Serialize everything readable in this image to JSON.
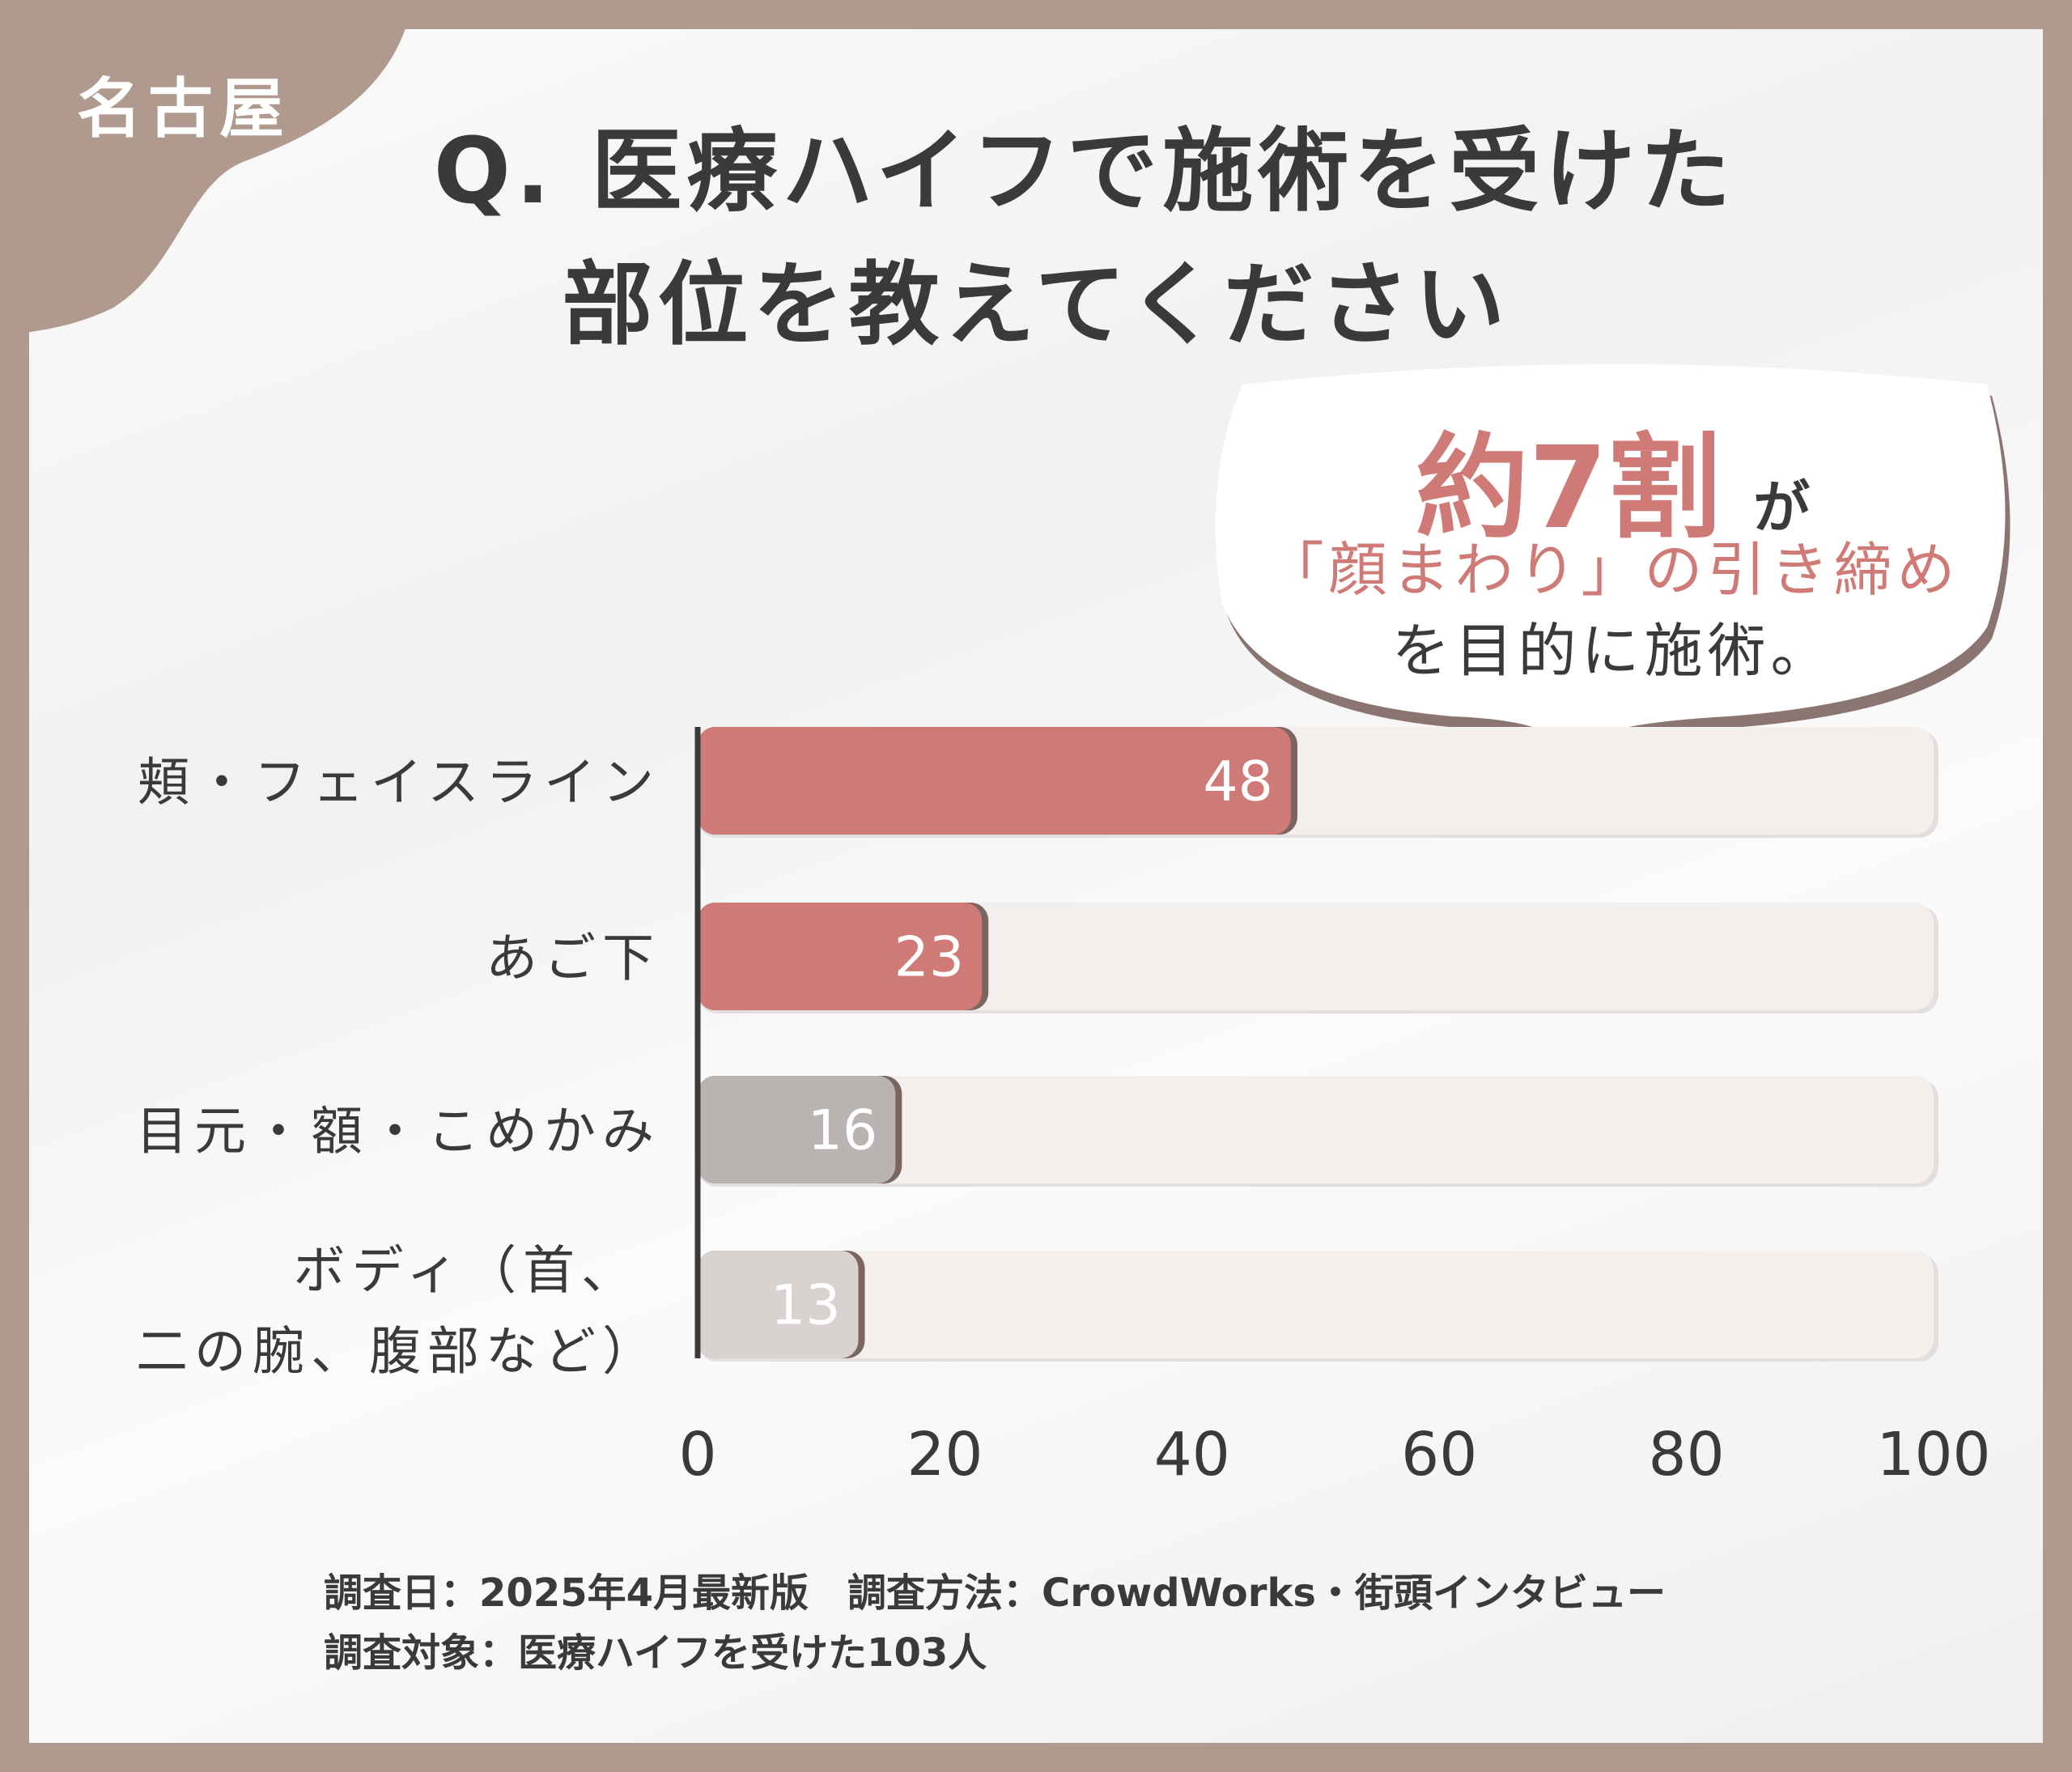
{
  "badge": "名古屋",
  "title": [
    "Q. 医療ハイフで施術を受けた",
    "部位を教えてください"
  ],
  "callout": {
    "highlight": "約7割",
    "particle": "が",
    "line2": "「顔まわり」の引き締め",
    "line3": "を目的に施術。"
  },
  "colors": {
    "frame": "#b09a8e",
    "highlight": "#cf7a76",
    "track": "#f3efec",
    "gray_dark": "#b9b3b1",
    "gray_light": "#d8d3d1"
  },
  "chart_data": {
    "type": "bar",
    "orientation": "horizontal",
    "categories": [
      "頬・フェイスライン",
      "あご下",
      "目元・額・こめかみ",
      "ボディ（首、二の腕、腹部など）"
    ],
    "category_lines": [
      [
        "頬・フェイスライン"
      ],
      [
        "あご下"
      ],
      [
        "目元・額・こめかみ"
      ],
      [
        "ボディ（首、",
        "二の腕、腹部など）"
      ]
    ],
    "values": [
      48,
      23,
      16,
      13
    ],
    "bar_colors": [
      "#cf7a76",
      "#cf7a76",
      "#b9b3b1",
      "#d8d3d1"
    ],
    "xlim": [
      0,
      100
    ],
    "xticks": [
      "0",
      "20",
      "40",
      "60",
      "80",
      "100"
    ],
    "grid": false
  },
  "footer": [
    "調査日：2025年4月最新版　調査方法：CrowdWorks・街頭インタビュー",
    "調査対象：医療ハイフを受けた103人"
  ]
}
